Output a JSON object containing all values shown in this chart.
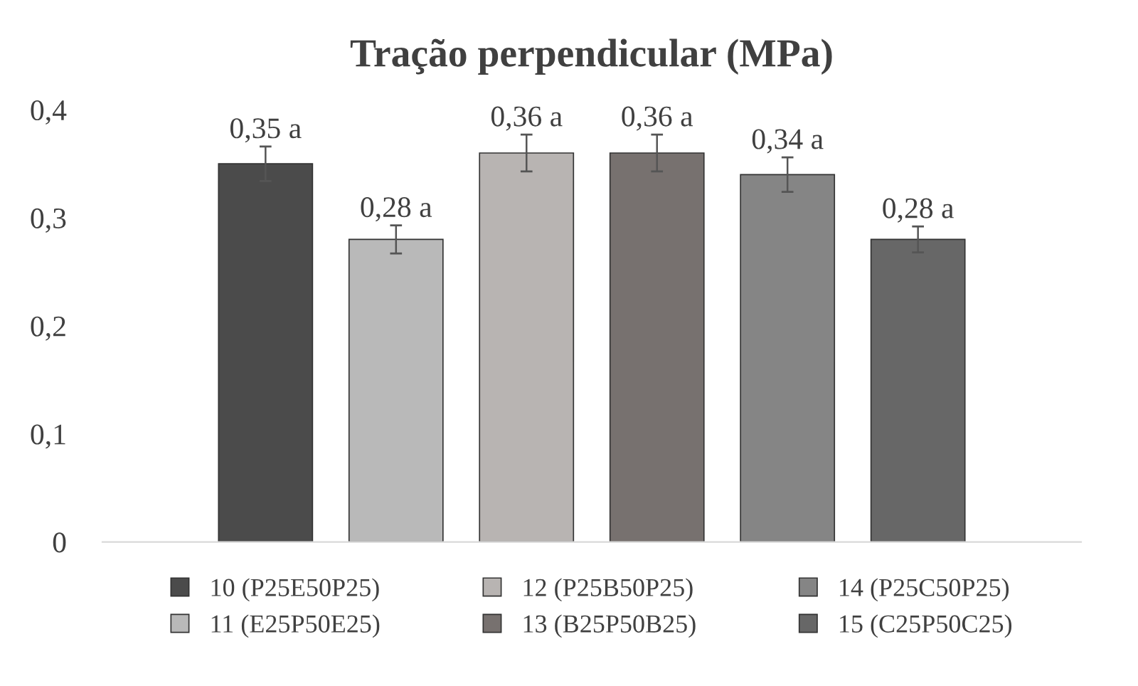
{
  "chart_data": {
    "type": "bar",
    "title": "Tração perpendicular (MPa)",
    "categories": [
      null
    ],
    "series": [
      {
        "name": "10 (P25E50P25)",
        "color": "#4b4b4b",
        "values": [
          0.35
        ],
        "errors": [
          0.016
        ],
        "value_labels": [
          "0,35 a"
        ]
      },
      {
        "name": "11 (E25P50E25)",
        "color": "#b9b9b9",
        "values": [
          0.28
        ],
        "errors": [
          0.013
        ],
        "value_labels": [
          "0,28 a"
        ]
      },
      {
        "name": "12 (P25B50P25)",
        "color": "#b8b4b2",
        "values": [
          0.36
        ],
        "errors": [
          0.017
        ],
        "value_labels": [
          "0,36 a"
        ]
      },
      {
        "name": "13 (B25P50B25)",
        "color": "#77716f",
        "values": [
          0.36
        ],
        "errors": [
          0.017
        ],
        "value_labels": [
          "0,36 a"
        ]
      },
      {
        "name": "14 (P25C50P25)",
        "color": "#858585",
        "values": [
          0.34
        ],
        "errors": [
          0.016
        ],
        "value_labels": [
          "0,34 a"
        ]
      },
      {
        "name": "15 (C25P50C25)",
        "color": "#676767",
        "values": [
          0.28
        ],
        "errors": [
          0.012
        ],
        "value_labels": [
          "0,28 a"
        ]
      }
    ],
    "ylim": [
      0,
      0.4
    ],
    "yticks": [
      {
        "value": 0,
        "label": "0"
      },
      {
        "value": 0.1,
        "label": "0,1"
      },
      {
        "value": 0.2,
        "label": "0,2"
      },
      {
        "value": 0.3,
        "label": "0,3"
      },
      {
        "value": 0.4,
        "label": "0,4"
      }
    ],
    "grid": false,
    "legend": "bottom"
  }
}
